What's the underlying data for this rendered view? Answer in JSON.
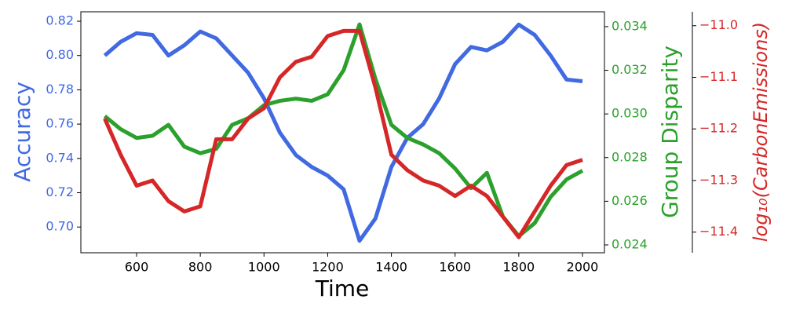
{
  "chart_data": {
    "type": "line",
    "xlabel": "Time",
    "ylabel": "Accuracy",
    "y2label": "Group Disparity",
    "y3label": "log₁₀(CarbonEmissions)",
    "x": [
      500,
      550,
      600,
      650,
      700,
      750,
      800,
      850,
      900,
      950,
      1000,
      1050,
      1100,
      1150,
      1200,
      1250,
      1300,
      1350,
      1400,
      1450,
      1500,
      1550,
      1600,
      1650,
      1700,
      1750,
      1800,
      1850,
      1900,
      1950,
      2000
    ],
    "series": [
      {
        "name": "Accuracy",
        "color": "#4169e1",
        "axis": "y",
        "values": [
          0.8,
          0.808,
          0.813,
          0.812,
          0.8,
          0.806,
          0.814,
          0.81,
          0.8,
          0.79,
          0.775,
          0.755,
          0.742,
          0.735,
          0.73,
          0.722,
          0.692,
          0.705,
          0.735,
          0.752,
          0.76,
          0.775,
          0.795,
          0.805,
          0.803,
          0.808,
          0.818,
          0.812,
          0.8,
          0.786,
          0.785
        ]
      },
      {
        "name": "Group Disparity",
        "color": "#2ca02c",
        "axis": "y2",
        "values": [
          0.0299,
          0.0293,
          0.0289,
          0.029,
          0.0295,
          0.0285,
          0.0282,
          0.0284,
          0.0295,
          0.0298,
          0.0304,
          0.0306,
          0.0307,
          0.0306,
          0.0309,
          0.032,
          0.0341,
          0.0316,
          0.0295,
          0.0289,
          0.0286,
          0.0282,
          0.0275,
          0.0266,
          0.0273,
          0.0253,
          0.0244,
          0.025,
          0.0262,
          0.027,
          0.0274
        ]
      },
      {
        "name": "log10(CarbonEmissions)",
        "color": "#d62728",
        "axis": "y3",
        "values": [
          -11.18,
          -11.25,
          -11.31,
          -11.3,
          -11.34,
          -11.36,
          -11.35,
          -11.22,
          -11.22,
          -11.18,
          -11.16,
          -11.1,
          -11.07,
          -11.06,
          -11.02,
          -11.01,
          -11.01,
          -11.12,
          -11.25,
          -11.28,
          -11.3,
          -11.31,
          -11.33,
          -11.31,
          -11.33,
          -11.37,
          -11.41,
          -11.36,
          -11.31,
          -11.27,
          -11.26
        ]
      }
    ],
    "xlim": [
      425,
      2069
    ],
    "xticks": [
      600,
      800,
      1000,
      1200,
      1400,
      1600,
      1800,
      2000
    ],
    "ylim": [
      0.685,
      0.8255
    ],
    "yticks": [
      {
        "value": 0.7,
        "label": "0.70"
      },
      0.72,
      0.74,
      0.76,
      0.78,
      {
        "value": 0.8,
        "label": "0.80"
      },
      0.82
    ],
    "y2lim": [
      0.02364,
      0.03468
    ],
    "y2ticks": [
      0.024,
      0.026,
      0.028,
      {
        "value": 0.03,
        "label": "0.030"
      },
      0.032,
      0.034
    ],
    "y3lim": [
      -11.44,
      -10.973
    ],
    "y3ticks": [
      {
        "value": -11.4,
        "label": "−11.4"
      },
      {
        "value": -11.3,
        "label": "−11.3"
      },
      {
        "value": -11.2,
        "label": "−11.2"
      },
      {
        "value": -11.1,
        "label": "−11.1"
      },
      {
        "value": -11.0,
        "label": "−11.0"
      }
    ]
  }
}
